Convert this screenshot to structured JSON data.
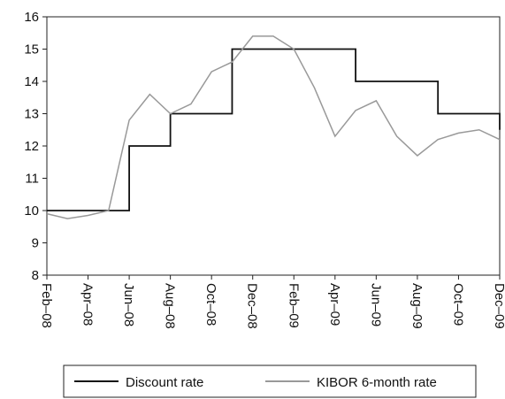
{
  "chart_data": {
    "type": "line",
    "x": [
      "2008-02",
      "2008-03",
      "2008-04",
      "2008-05",
      "2008-06",
      "2008-07",
      "2008-08",
      "2008-09",
      "2008-10",
      "2008-11",
      "2008-12",
      "2009-01",
      "2009-02",
      "2009-03",
      "2009-04",
      "2009-05",
      "2009-06",
      "2009-07",
      "2009-08",
      "2009-09",
      "2009-10",
      "2009-11",
      "2009-12"
    ],
    "series": [
      {
        "name": "Discount rate",
        "color": "#111111",
        "step": "after",
        "values": [
          10,
          10,
          10,
          10,
          12,
          12,
          13,
          13,
          13,
          15,
          15,
          15,
          15,
          15,
          15,
          14,
          14,
          14,
          14,
          13,
          13,
          13,
          12.5
        ]
      },
      {
        "name": "KIBOR 6-month rate",
        "color": "#999999",
        "values": [
          9.9,
          9.75,
          9.85,
          10.0,
          12.8,
          13.6,
          13.0,
          13.3,
          14.3,
          14.6,
          15.4,
          15.4,
          15.0,
          13.8,
          12.3,
          13.1,
          13.4,
          12.3,
          11.7,
          12.2,
          12.4,
          12.5,
          12.2
        ]
      }
    ],
    "ylim": [
      8,
      16
    ],
    "yticks": [
      8,
      9,
      10,
      11,
      12,
      13,
      14,
      15,
      16
    ],
    "xlim": [
      "2008-02",
      "2009-12"
    ],
    "xticks": [
      {
        "value": "2008-02",
        "label": "Feb–08"
      },
      {
        "value": "2008-04",
        "label": "Apr–08"
      },
      {
        "value": "2008-06",
        "label": "Jun–08"
      },
      {
        "value": "2008-08",
        "label": "Aug–08"
      },
      {
        "value": "2008-10",
        "label": "Oct–08"
      },
      {
        "value": "2008-12",
        "label": "Dec–08"
      },
      {
        "value": "2009-02",
        "label": "Feb–09"
      },
      {
        "value": "2009-04",
        "label": "Apr–09"
      },
      {
        "value": "2009-06",
        "label": "Jun–09"
      },
      {
        "value": "2009-08",
        "label": "Aug–09"
      },
      {
        "value": "2009-10",
        "label": "Oct–09"
      },
      {
        "value": "2009-12",
        "label": "Dec–09"
      }
    ],
    "legend": "bottom"
  }
}
